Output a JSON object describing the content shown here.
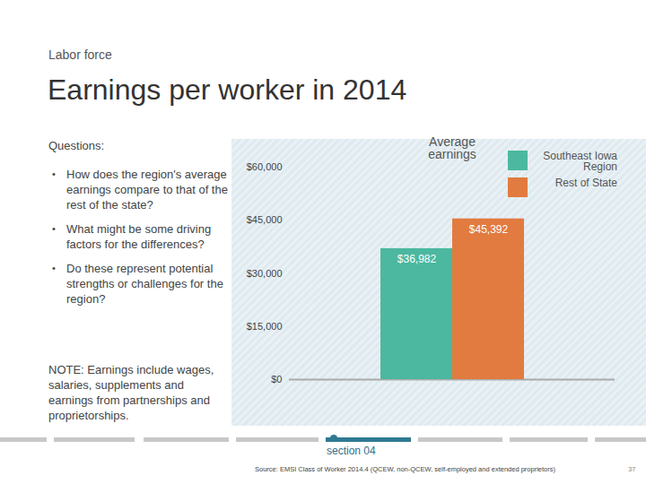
{
  "slide": {
    "section": "Labor force",
    "heading": "Earnings per worker in 2014",
    "questions_title": "Questions:",
    "questions": [
      "How does the region's average earnings compare to that of the rest of the state?",
      "What might be some driving factors for the differences?",
      "Do these represent potential strengths or challenges for the region?"
    ],
    "note": "NOTE: Earnings include wages, salaries, supplements and earnings from partnerships and proprietorships.",
    "footer": "section 04",
    "source": "Source: EMSI Class of Worker 2014.4 (QCEW, non-QCEW, self-employed and extended proprietors)",
    "page": "37"
  },
  "chart_data": {
    "type": "bar",
    "categories": [
      "Average earnings"
    ],
    "series": [
      {
        "name": "Southeast Iowa Region",
        "color": "#4cb89f",
        "values": [
          36982
        ],
        "value_labels": [
          "$36,982"
        ]
      },
      {
        "name": "Rest of State",
        "color": "#e27b40",
        "values": [
          45392
        ],
        "value_labels": [
          "$45,392"
        ]
      }
    ],
    "ylim": [
      0,
      60000
    ],
    "yticks": [
      {
        "value": 0,
        "label": "$0"
      },
      {
        "value": 15000,
        "label": "$15,000"
      },
      {
        "value": 30000,
        "label": "$30,000"
      },
      {
        "value": 45000,
        "label": "$45,000"
      },
      {
        "value": 60000,
        "label": "$60,000"
      }
    ],
    "data_labels": true,
    "grid": false,
    "legend": "top-right"
  }
}
